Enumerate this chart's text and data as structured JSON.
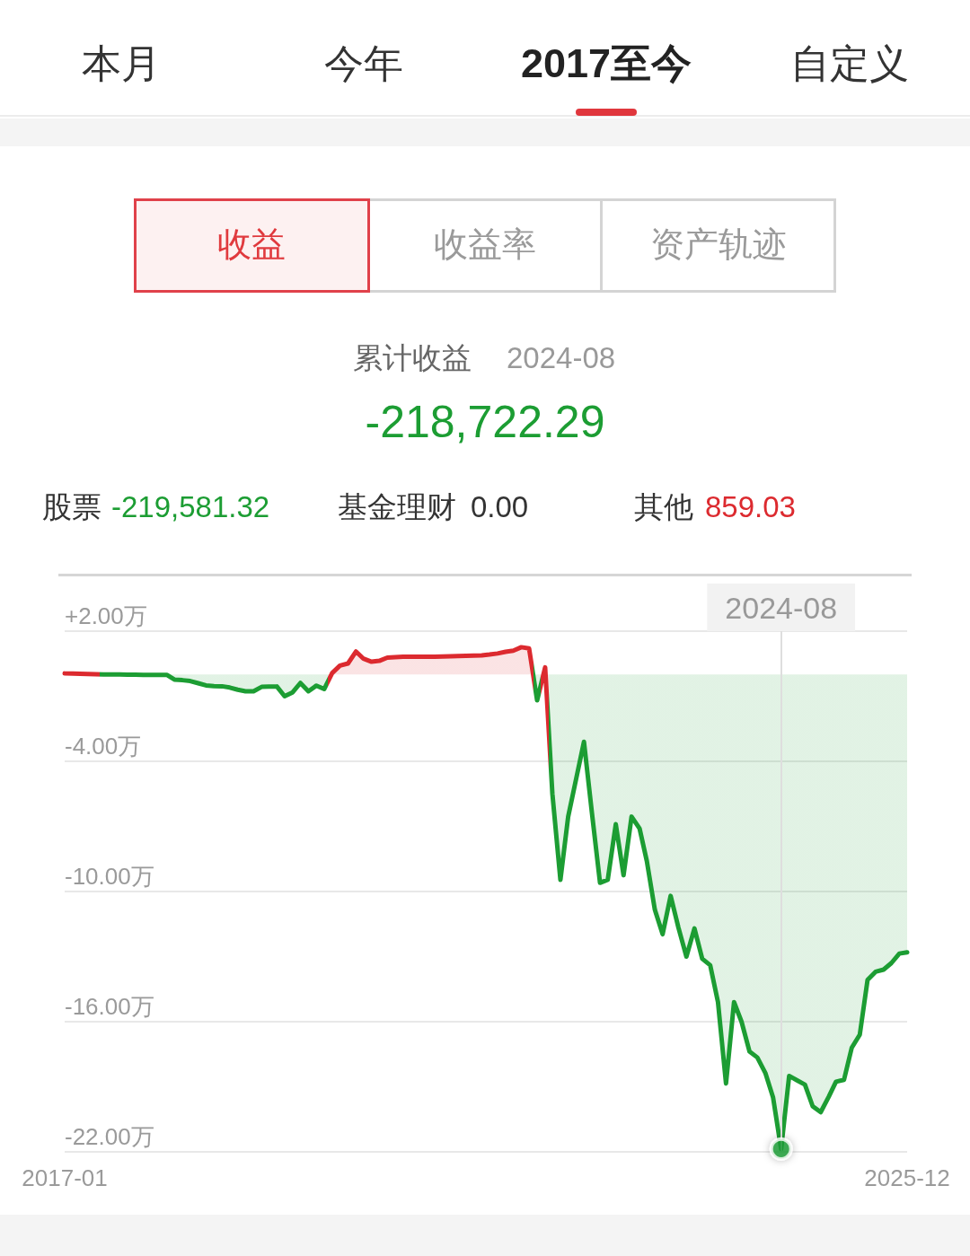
{
  "chart_data": {
    "type": "area",
    "x": [
      "2017-01",
      "2017-02",
      "2017-03",
      "2017-04",
      "2017-05",
      "2017-06",
      "2017-07",
      "2017-08",
      "2017-09",
      "2017-10",
      "2017-11",
      "2017-12",
      "2018-01",
      "2018-02",
      "2018-03",
      "2018-04",
      "2018-05",
      "2018-06",
      "2018-07",
      "2018-08",
      "2018-09",
      "2018-10",
      "2018-11",
      "2018-12",
      "2019-01",
      "2019-02",
      "2019-03",
      "2019-04",
      "2019-05",
      "2019-06",
      "2019-07",
      "2019-08",
      "2019-09",
      "2019-10",
      "2019-11",
      "2019-12",
      "2020-01",
      "2020-02",
      "2020-03",
      "2020-04",
      "2020-05",
      "2020-06",
      "2020-07",
      "2020-08",
      "2020-09",
      "2020-10",
      "2020-11",
      "2020-12",
      "2021-01",
      "2021-02",
      "2021-03",
      "2021-04",
      "2021-05",
      "2021-06",
      "2021-07",
      "2021-08",
      "2021-09",
      "2021-10",
      "2021-11",
      "2021-12",
      "2022-01",
      "2022-02",
      "2022-03",
      "2022-04",
      "2022-05",
      "2022-06",
      "2022-07",
      "2022-08",
      "2022-09",
      "2022-10",
      "2022-11",
      "2022-12",
      "2023-01",
      "2023-02",
      "2023-03",
      "2023-04",
      "2023-05",
      "2023-06",
      "2023-07",
      "2023-08",
      "2023-09",
      "2023-10",
      "2023-11",
      "2023-12",
      "2024-01",
      "2024-02",
      "2024-03",
      "2024-04",
      "2024-05",
      "2024-06",
      "2024-07",
      "2024-08",
      "2024-09",
      "2024-10",
      "2024-11",
      "2024-12",
      "2025-01",
      "2025-02",
      "2025-03",
      "2025-04",
      "2025-05",
      "2025-06",
      "2025-07",
      "2025-08",
      "2025-09",
      "2025-10",
      "2025-11",
      "2025-12"
    ],
    "series": [
      {
        "values": [
          0.05,
          0.04,
          0.03,
          0.02,
          0.01,
          0,
          0,
          0,
          -0.01,
          -0.01,
          -0.02,
          -0.02,
          -0.02,
          -0.02,
          -0.23,
          -0.26,
          -0.3,
          -0.4,
          -0.5,
          -0.53,
          -0.54,
          -0.6,
          -0.7,
          -0.77,
          -0.77,
          -0.57,
          -0.56,
          -0.55,
          -1.0,
          -0.82,
          -0.39,
          -0.77,
          -0.51,
          -0.67,
          0.07,
          0.41,
          0.51,
          1.06,
          0.73,
          0.59,
          0.63,
          0.78,
          0.8,
          0.82,
          0.82,
          0.82,
          0.82,
          0.82,
          0.83,
          0.84,
          0.85,
          0.86,
          0.87,
          0.88,
          0.92,
          0.97,
          1.05,
          1.1,
          1.26,
          1.2,
          -1.19,
          0.33,
          -5.5,
          -9.46,
          -6.55,
          -4.8,
          -3.1,
          -6.4,
          -9.6,
          -9.46,
          -6.9,
          -9.25,
          -6.55,
          -7.1,
          -8.6,
          -10.84,
          -11.97,
          -10.2,
          -11.66,
          -13.0,
          -11.7,
          -13.1,
          -13.4,
          -15.1,
          -18.85,
          -15.1,
          -16.0,
          -17.38,
          -17.65,
          -18.36,
          -19.5,
          -21.87,
          -18.5,
          -18.7,
          -18.9,
          -19.9,
          -20.17,
          -19.46,
          -18.77,
          -18.68,
          -17.2,
          -16.6,
          -14.08,
          -13.7,
          -13.6,
          -13.3,
          -12.86,
          -12.8
        ],
        "colors": [
          "#dc2a2f",
          "#dc2a2f",
          "#dc2a2f",
          "#dc2a2f",
          "#dc2a2f",
          "#1c9d33",
          "#1c9d33",
          "#1c9d33",
          "#1c9d33",
          "#1c9d33",
          "#1c9d33",
          "#1c9d33",
          "#1c9d33",
          "#1c9d33",
          "#1c9d33",
          "#1c9d33",
          "#1c9d33",
          "#1c9d33",
          "#1c9d33",
          "#1c9d33",
          "#1c9d33",
          "#1c9d33",
          "#1c9d33",
          "#1c9d33",
          "#1c9d33",
          "#1c9d33",
          "#1c9d33",
          "#1c9d33",
          "#1c9d33",
          "#1c9d33",
          "#1c9d33",
          "#1c9d33",
          "#1c9d33",
          "#1c9d33",
          "#dc2a2f",
          "#dc2a2f",
          "#dc2a2f",
          "#dc2a2f",
          "#dc2a2f",
          "#dc2a2f",
          "#dc2a2f",
          "#dc2a2f",
          "#dc2a2f",
          "#dc2a2f",
          "#dc2a2f",
          "#dc2a2f",
          "#dc2a2f",
          "#dc2a2f",
          "#dc2a2f",
          "#dc2a2f",
          "#dc2a2f",
          "#dc2a2f",
          "#dc2a2f",
          "#dc2a2f",
          "#dc2a2f",
          "#dc2a2f",
          "#dc2a2f",
          "#dc2a2f",
          "#dc2a2f",
          "#dc2a2f",
          "#1c9d33",
          "#dc2a2f",
          "#1c9d33",
          "#1c9d33",
          "#1c9d33",
          "#1c9d33",
          "#1c9d33",
          "#1c9d33",
          "#1c9d33",
          "#1c9d33",
          "#1c9d33",
          "#1c9d33",
          "#1c9d33",
          "#1c9d33",
          "#1c9d33",
          "#1c9d33",
          "#1c9d33",
          "#1c9d33",
          "#1c9d33",
          "#1c9d33",
          "#1c9d33",
          "#1c9d33",
          "#1c9d33",
          "#1c9d33",
          "#1c9d33",
          "#1c9d33",
          "#1c9d33",
          "#1c9d33",
          "#1c9d33",
          "#1c9d33",
          "#1c9d33",
          "#1c9d33",
          "#1c9d33",
          "#1c9d33",
          "#1c9d33",
          "#1c9d33",
          "#1c9d33",
          "#1c9d33",
          "#1c9d33",
          "#1c9d33",
          "#1c9d33",
          "#1c9d33",
          "#1c9d33",
          "#1c9d33",
          "#1c9d33",
          "#1c9d33",
          "#1c9d33",
          "#1c9d33"
        ]
      },
      {
        "type": "scatter",
        "x": [
          "2024-08"
        ],
        "values": [
          -21.87
        ],
        "color": "#1c9d33",
        "marker": "circle"
      }
    ],
    "xlim": [
      "2017-01",
      "2025-12"
    ],
    "xticks": [
      "2017-01",
      "2025-12"
    ],
    "ylim": [
      -22,
      2
    ],
    "yticks": [
      {
        "value": 2,
        "label": "+2.00万"
      },
      {
        "value": -4,
        "label": "-4.00万"
      },
      {
        "value": -10,
        "label": "-10.00万"
      },
      {
        "value": -16,
        "label": "-16.00万"
      },
      {
        "value": -22,
        "label": "-22.00万"
      }
    ],
    "grid": "y",
    "ref_lines": [
      {
        "axis": "x",
        "value": "2024-08",
        "label": "2024-08",
        "color": "#dedede"
      }
    ],
    "annotations": [
      "本月",
      "今年",
      "2017至今",
      "自定义",
      "收益",
      "收益率",
      "资产轨迹",
      "累计收益",
      "2024-08",
      "-218,722.29",
      "股票",
      "-219,581.32",
      "基金理财",
      "0.00",
      "其他",
      "859.03"
    ]
  }
}
